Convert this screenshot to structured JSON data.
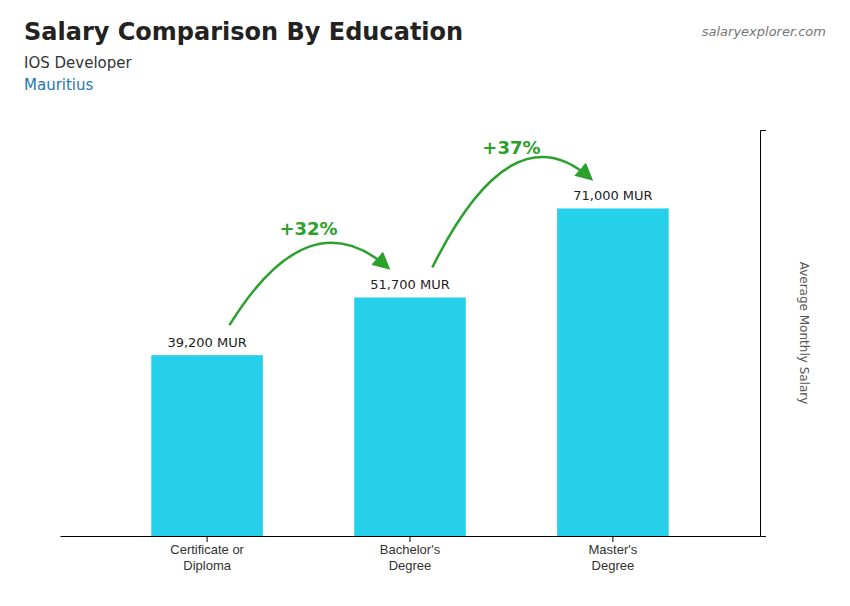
{
  "chart_data": {
    "type": "bar",
    "title": "Salary Comparison By Education",
    "subtitle": [
      "IOS Developer",
      "Mauritius"
    ],
    "source": "salaryexplorer.com",
    "ylabel": "Average Monthly Salary",
    "categories": [
      "Certificate or\nDiploma",
      "Bachelor's\nDegree",
      "Master's\nDegree"
    ],
    "values": [
      39200,
      51700,
      71000
    ],
    "value_labels": [
      "39,200 MUR",
      "51,700 MUR",
      "71,000 MUR"
    ],
    "data_labels": true,
    "annotations": [
      "+32%",
      "+37%"
    ],
    "color": "#00c8e8",
    "ylim": [
      0,
      88000
    ],
    "yticks": [],
    "tick_labels": "x",
    "grid": false
  }
}
